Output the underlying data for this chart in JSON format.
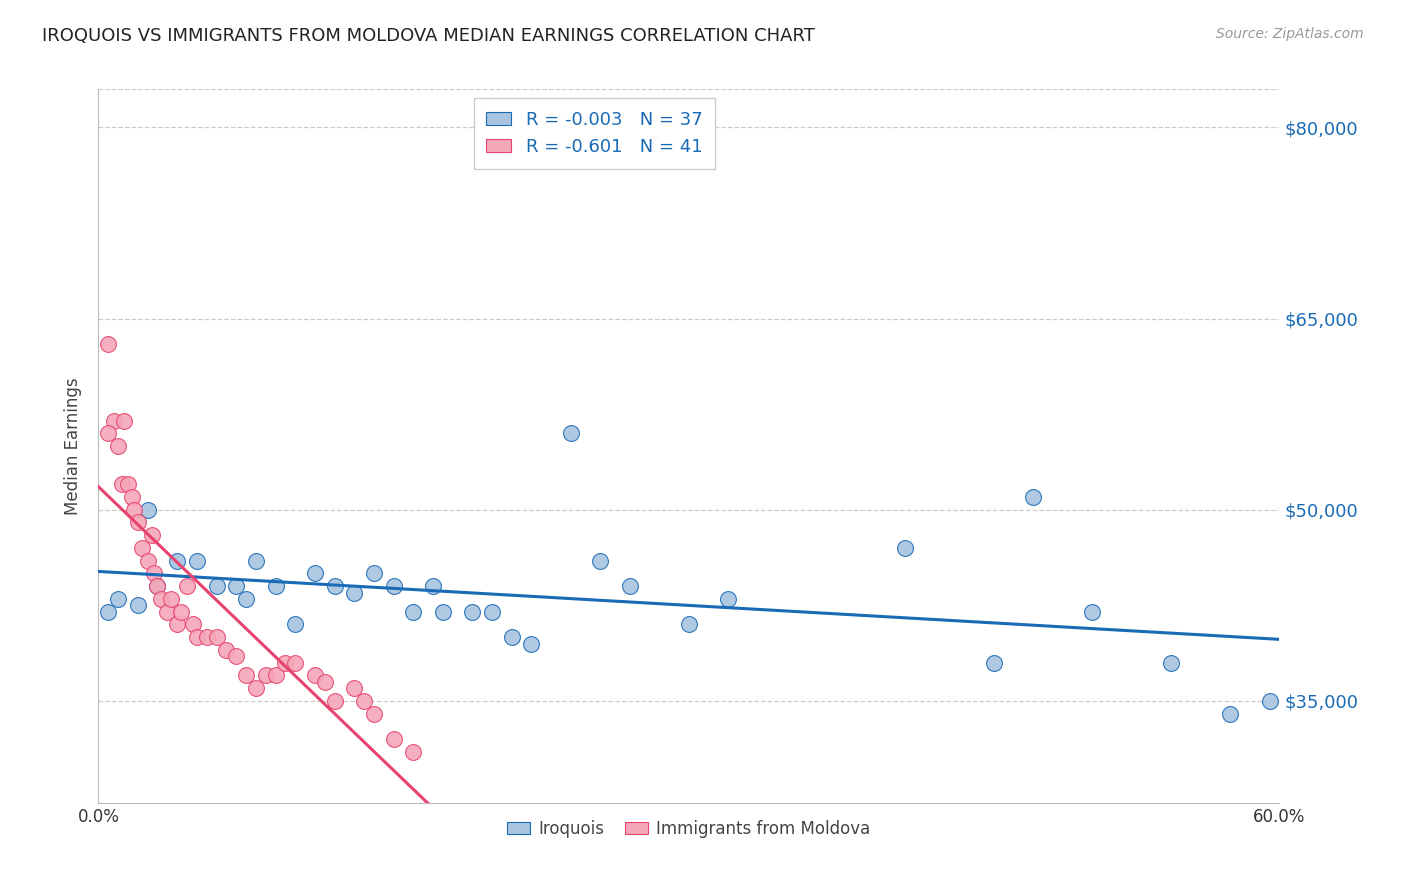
{
  "title": "IROQUOIS VS IMMIGRANTS FROM MOLDOVA MEDIAN EARNINGS CORRELATION CHART",
  "source": "Source: ZipAtlas.com",
  "ylabel": "Median Earnings",
  "xlim": [
    0.0,
    0.6
  ],
  "ylim": [
    27000,
    83000
  ],
  "yticks": [
    35000,
    50000,
    65000,
    80000
  ],
  "ytick_labels": [
    "$35,000",
    "$50,000",
    "$65,000",
    "$80,000"
  ],
  "xticks": [
    0.0,
    0.1,
    0.2,
    0.3,
    0.4,
    0.5,
    0.6
  ],
  "xtick_labels": [
    "0.0%",
    "",
    "",
    "",
    "",
    "",
    "60.0%"
  ],
  "legend_label1": "Iroquois",
  "legend_label2": "Immigrants from Moldova",
  "R1": "-0.003",
  "N1": "37",
  "R2": "-0.601",
  "N2": "41",
  "blue_color": "#a8c4e0",
  "pink_color": "#f4a7b9",
  "line_blue": "#1a6bb5",
  "line_pink": "#e8436e",
  "iroquois_x": [
    0.005,
    0.01,
    0.02,
    0.025,
    0.03,
    0.04,
    0.05,
    0.06,
    0.07,
    0.075,
    0.08,
    0.09,
    0.1,
    0.11,
    0.12,
    0.13,
    0.14,
    0.15,
    0.16,
    0.17,
    0.175,
    0.19,
    0.2,
    0.21,
    0.22,
    0.24,
    0.255,
    0.27,
    0.3,
    0.32,
    0.41,
    0.455,
    0.475,
    0.505,
    0.545,
    0.575,
    0.595
  ],
  "iroquois_y": [
    42000,
    43000,
    42500,
    50000,
    44000,
    46000,
    46000,
    44000,
    44000,
    43000,
    46000,
    44000,
    41000,
    45000,
    44000,
    43500,
    45000,
    44000,
    42000,
    44000,
    42000,
    42000,
    42000,
    40000,
    39500,
    56000,
    46000,
    44000,
    41000,
    43000,
    47000,
    38000,
    51000,
    42000,
    38000,
    34000,
    35000
  ],
  "moldova_x": [
    0.005,
    0.008,
    0.01,
    0.012,
    0.013,
    0.015,
    0.017,
    0.018,
    0.02,
    0.022,
    0.025,
    0.027,
    0.028,
    0.03,
    0.032,
    0.035,
    0.037,
    0.04,
    0.042,
    0.045,
    0.048,
    0.05,
    0.055,
    0.06,
    0.065,
    0.07,
    0.075,
    0.08,
    0.085,
    0.09,
    0.095,
    0.1,
    0.11,
    0.115,
    0.12,
    0.13,
    0.135,
    0.14,
    0.15,
    0.16,
    0.005
  ],
  "moldova_y": [
    63000,
    57000,
    55000,
    52000,
    57000,
    52000,
    51000,
    50000,
    49000,
    47000,
    46000,
    48000,
    45000,
    44000,
    43000,
    42000,
    43000,
    41000,
    42000,
    44000,
    41000,
    40000,
    40000,
    40000,
    39000,
    38500,
    37000,
    36000,
    37000,
    37000,
    38000,
    38000,
    37000,
    36500,
    35000,
    36000,
    35000,
    34000,
    32000,
    31000,
    56000
  ]
}
